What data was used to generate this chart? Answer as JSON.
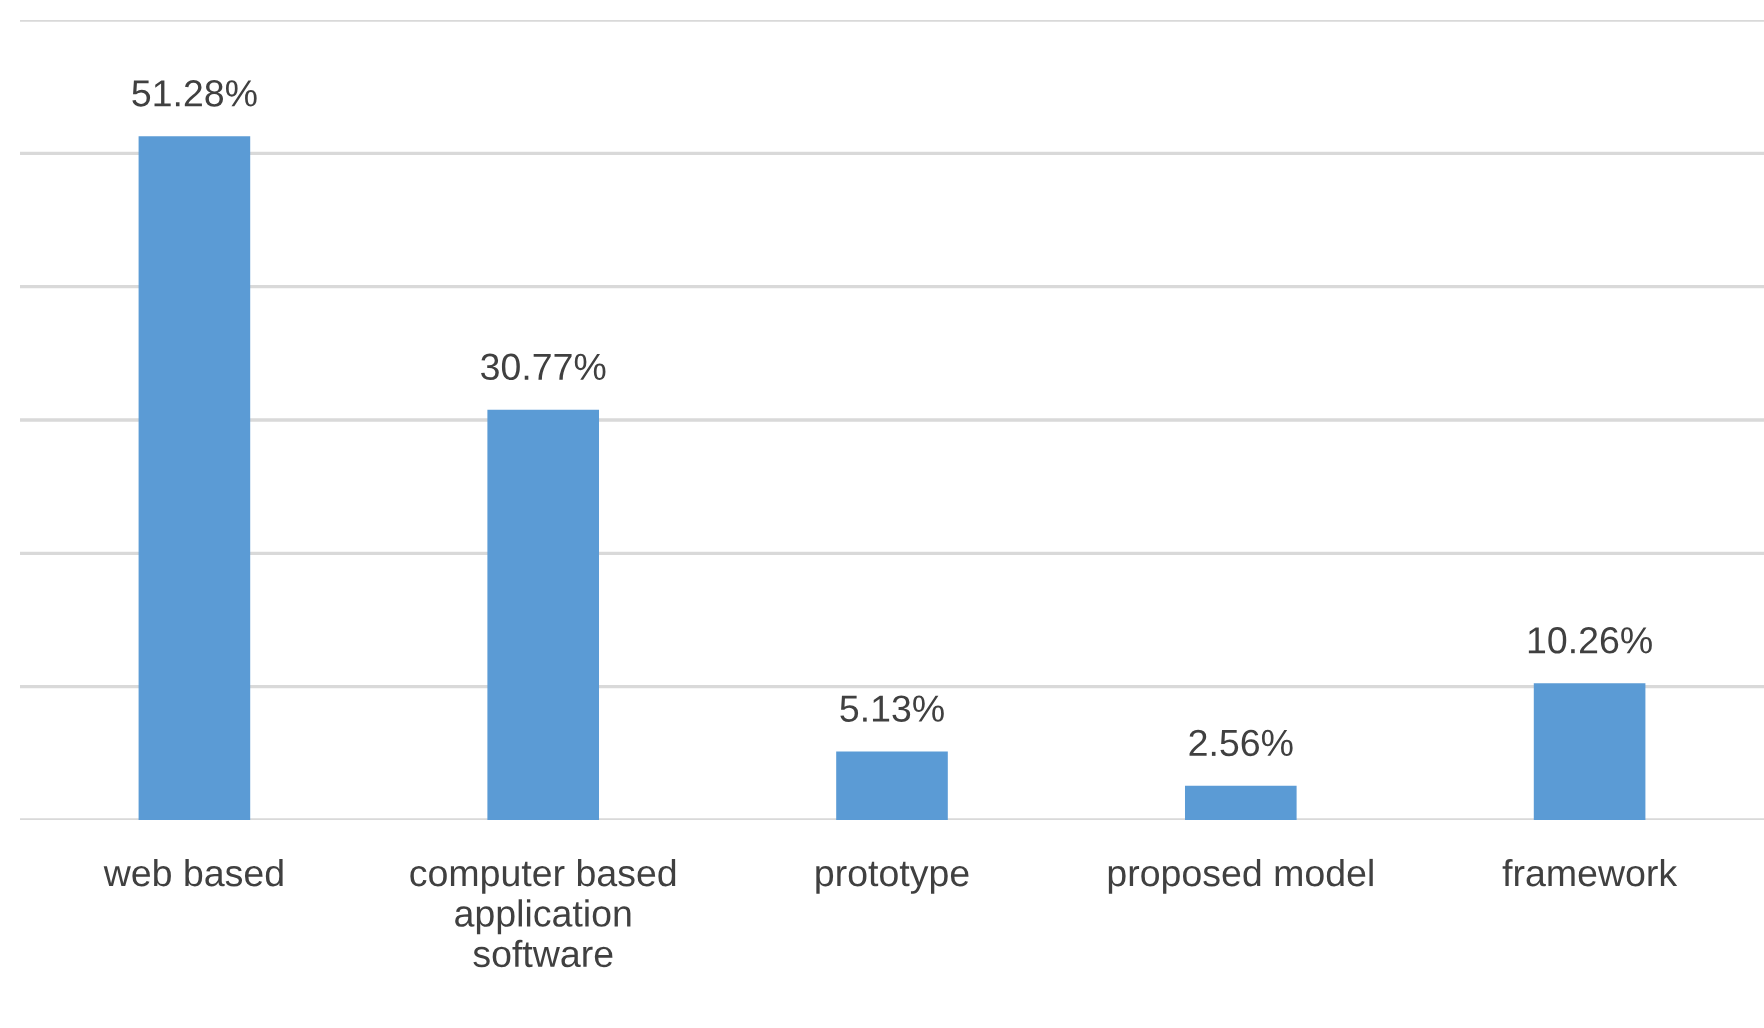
{
  "chart_data": {
    "type": "bar",
    "categories": [
      "web based",
      "computer based\napplication\nsoftware",
      "prototype",
      "proposed model",
      "framework"
    ],
    "values": [
      51.28,
      30.77,
      5.13,
      2.56,
      10.26
    ],
    "value_labels": [
      "51.28%",
      "30.77%",
      "5.13%",
      "2.56%",
      "10.26%"
    ],
    "color": "#5b9bd5",
    "ylim": [
      0,
      60
    ],
    "yticks": [
      {
        "value": 0,
        "label": null
      },
      {
        "value": 10,
        "label": null
      },
      {
        "value": 20,
        "label": null
      },
      {
        "value": 30,
        "label": null
      },
      {
        "value": 40,
        "label": null
      },
      {
        "value": 50,
        "label": null
      },
      {
        "value": 60,
        "label": null
      }
    ],
    "tick_labels": "x",
    "grid": "y",
    "legend": false
  }
}
